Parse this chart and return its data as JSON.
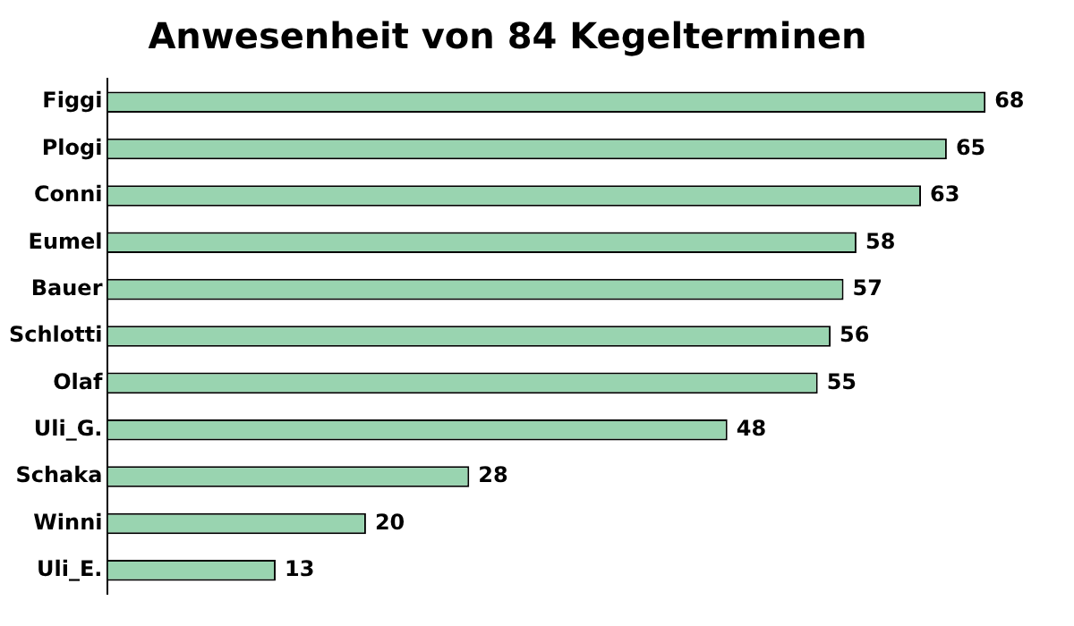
{
  "chart_data": {
    "type": "bar",
    "orientation": "horizontal",
    "title": "Anwesenheit von 84 Kegelterminen",
    "categories": [
      "Figgi",
      "Plogi",
      "Conni",
      "Eumel",
      "Bauer",
      "Schlotti",
      "Olaf",
      "Uli_G.",
      "Schaka",
      "Winni",
      "Uli_E."
    ],
    "values": [
      68,
      65,
      63,
      58,
      57,
      56,
      55,
      48,
      28,
      20,
      13
    ],
    "color": "#99d4b0",
    "data_labels": true,
    "grid": false,
    "legend": false
  }
}
